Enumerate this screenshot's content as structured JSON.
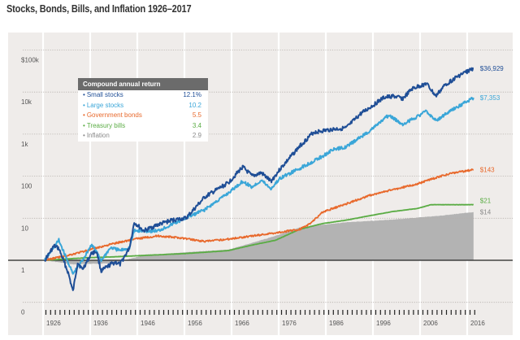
{
  "title": "Stocks, Bonds, Bills, and Inflation 1926–2017",
  "chart_data": {
    "type": "line",
    "title": "Stocks, Bonds, Bills, and Inflation 1926–2017",
    "xlabel": "",
    "ylabel": "",
    "y_scale": "log",
    "ylim": [
      0.1,
      100000
    ],
    "xlim": [
      1926,
      2017
    ],
    "y_ticks": [
      {
        "value": 100000,
        "label": "$100k"
      },
      {
        "value": 10000,
        "label": "10k"
      },
      {
        "value": 1000,
        "label": "1k"
      },
      {
        "value": 100,
        "label": "100"
      },
      {
        "value": 10,
        "label": "10"
      },
      {
        "value": 1,
        "label": "1"
      },
      {
        "value": 0.1,
        "label": "0"
      }
    ],
    "x_tick_labels": [
      "1926",
      "1936",
      "1946",
      "1956",
      "1966",
      "1976",
      "1986",
      "1996",
      "2006",
      "2016"
    ],
    "grid": true,
    "legend": {
      "title": "Compound annual return",
      "placement": "top-left",
      "entries": [
        {
          "name": "Small stocks",
          "value": "12.1%",
          "color": "#1f4e96"
        },
        {
          "name": "Large stocks",
          "value": "10.2",
          "color": "#3aa6d8"
        },
        {
          "name": "Government bonds",
          "value": "5.5",
          "color": "#e8692c"
        },
        {
          "name": "Treasury bills",
          "value": "3.4",
          "color": "#5aac44"
        },
        {
          "name": "Inflation",
          "value": "2.9",
          "color": "#8a8a8a"
        }
      ]
    },
    "series": [
      {
        "name": "Small stocks",
        "color": "#1f4e96",
        "end_label": "$36,929",
        "style": "line",
        "points": [
          [
            1926,
            1
          ],
          [
            1928,
            2.2
          ],
          [
            1929,
            1.9
          ],
          [
            1931,
            0.5
          ],
          [
            1932,
            0.18
          ],
          [
            1933,
            0.9
          ],
          [
            1934,
            0.6
          ],
          [
            1936,
            1.5
          ],
          [
            1937,
            1.6
          ],
          [
            1938,
            0.55
          ],
          [
            1940,
            0.8
          ],
          [
            1941,
            0.9
          ],
          [
            1942,
            0.8
          ],
          [
            1944,
            2
          ],
          [
            1945,
            8
          ],
          [
            1947,
            5
          ],
          [
            1950,
            7
          ],
          [
            1953,
            9
          ],
          [
            1956,
            10
          ],
          [
            1960,
            32
          ],
          [
            1965,
            70
          ],
          [
            1968,
            167
          ],
          [
            1970,
            100
          ],
          [
            1972,
            120
          ],
          [
            1974,
            75
          ],
          [
            1976,
            150
          ],
          [
            1980,
            500
          ],
          [
            1983,
            1100
          ],
          [
            1985,
            1200
          ],
          [
            1987,
            1300
          ],
          [
            1990,
            1400
          ],
          [
            1993,
            3000
          ],
          [
            1998,
            7400
          ],
          [
            2000,
            8000
          ],
          [
            2002,
            7000
          ],
          [
            2004,
            12000
          ],
          [
            2007,
            16000
          ],
          [
            2009,
            8000
          ],
          [
            2011,
            15000
          ],
          [
            2014,
            25000
          ],
          [
            2017,
            36929
          ]
        ]
      },
      {
        "name": "Large stocks",
        "color": "#3aa6d8",
        "end_label": "$7,353",
        "style": "line",
        "points": [
          [
            1926,
            1
          ],
          [
            1929,
            3
          ],
          [
            1932,
            0.47
          ],
          [
            1934,
            1
          ],
          [
            1936,
            2.4
          ],
          [
            1938,
            1
          ],
          [
            1940,
            2
          ],
          [
            1942,
            1.7
          ],
          [
            1944,
            2
          ],
          [
            1945,
            5
          ],
          [
            1950,
            5
          ],
          [
            1955,
            9
          ],
          [
            1960,
            16
          ],
          [
            1965,
            40
          ],
          [
            1968,
            75
          ],
          [
            1970,
            55
          ],
          [
            1972,
            80
          ],
          [
            1974,
            50
          ],
          [
            1976,
            90
          ],
          [
            1980,
            150
          ],
          [
            1985,
            300
          ],
          [
            1987,
            420
          ],
          [
            1990,
            500
          ],
          [
            1995,
            1200
          ],
          [
            1999,
            2800
          ],
          [
            2002,
            1700
          ],
          [
            2007,
            3500
          ],
          [
            2009,
            2100
          ],
          [
            2012,
            3500
          ],
          [
            2017,
            7353
          ]
        ]
      },
      {
        "name": "Government bonds",
        "color": "#e8692c",
        "end_label": "$143",
        "style": "line",
        "points": [
          [
            1926,
            1
          ],
          [
            1932,
            1.4
          ],
          [
            1940,
            2.4
          ],
          [
            1945,
            3.2
          ],
          [
            1950,
            3.8
          ],
          [
            1955,
            3.4
          ],
          [
            1960,
            2.8
          ],
          [
            1965,
            3.2
          ],
          [
            1970,
            3.8
          ],
          [
            1975,
            4.5
          ],
          [
            1980,
            5.4
          ],
          [
            1982,
            7
          ],
          [
            1985,
            14
          ],
          [
            1990,
            22
          ],
          [
            1995,
            35
          ],
          [
            2000,
            48
          ],
          [
            2005,
            65
          ],
          [
            2008,
            85
          ],
          [
            2012,
            115
          ],
          [
            2017,
            143
          ]
        ]
      },
      {
        "name": "Treasury bills",
        "color": "#5aac44",
        "end_label": "$21",
        "style": "line",
        "points": [
          [
            1926,
            1
          ],
          [
            1935,
            1.15
          ],
          [
            1940,
            1.2
          ],
          [
            1950,
            1.35
          ],
          [
            1956,
            1.45
          ],
          [
            1965,
            1.7
          ],
          [
            1970,
            2.3
          ],
          [
            1975,
            3
          ],
          [
            1980,
            5.4
          ],
          [
            1985,
            7.5
          ],
          [
            1990,
            9
          ],
          [
            1995,
            11.5
          ],
          [
            2000,
            14.5
          ],
          [
            2005,
            17
          ],
          [
            2008,
            21
          ],
          [
            2017,
            21
          ]
        ]
      },
      {
        "name": "Inflation",
        "color": "#b3b3b3",
        "end_label": "$14",
        "style": "area",
        "points": [
          [
            1926,
            1
          ],
          [
            1932,
            0.8
          ],
          [
            1940,
            0.85
          ],
          [
            1947,
            1.3
          ],
          [
            1956,
            1.55
          ],
          [
            1965,
            1.8
          ],
          [
            1970,
            2.6
          ],
          [
            1975,
            3.8
          ],
          [
            1980,
            6
          ],
          [
            1985,
            7
          ],
          [
            1990,
            8
          ],
          [
            2000,
            9.3
          ],
          [
            2010,
            11.5
          ],
          [
            2017,
            14
          ]
        ]
      }
    ]
  }
}
